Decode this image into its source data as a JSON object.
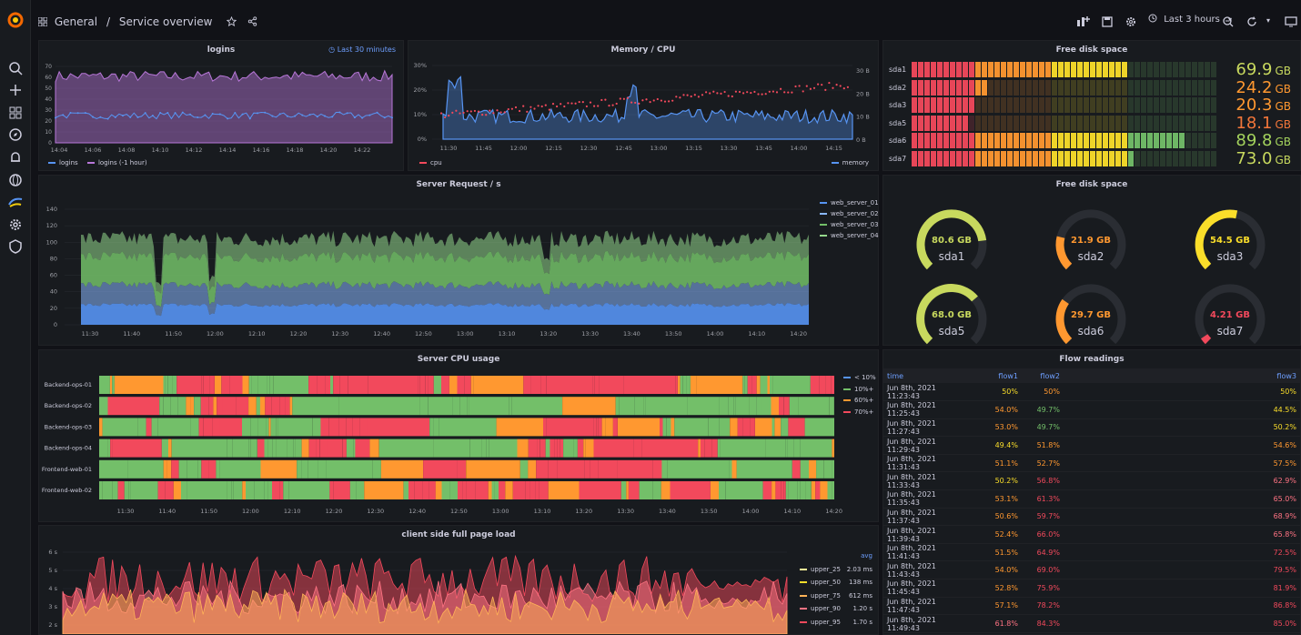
{
  "nav": {
    "breadcrumb_folder": "General",
    "breadcrumb_sep": "/",
    "dashboard_title": "Service overview",
    "time_range": "Last 3 hours"
  },
  "panels": {
    "logins": {
      "title": "logins",
      "relative_time": "Last 30 minutes",
      "y_ticks": [
        "70",
        "60",
        "50",
        "40",
        "30",
        "20",
        "10",
        "0"
      ],
      "x_ticks": [
        "14:04",
        "14:06",
        "14:08",
        "14:10",
        "14:12",
        "14:14",
        "14:16",
        "14:18",
        "14:20",
        "14:22"
      ],
      "legend": [
        "logins",
        "logins (-1 hour)"
      ]
    },
    "memory_cpu": {
      "title": "Memory / CPU",
      "y_left_ticks": [
        "30%",
        "20%",
        "10%",
        "0%"
      ],
      "y_right_ticks": [
        "30 B",
        "20 B",
        "10 B",
        "0 B"
      ],
      "x_ticks": [
        "11:30",
        "11:45",
        "12:00",
        "12:15",
        "12:30",
        "12:45",
        "13:00",
        "13:15",
        "13:30",
        "13:45",
        "14:00",
        "14:15"
      ],
      "legend": [
        "cpu",
        "memory"
      ]
    },
    "disk_bars": {
      "title": "Free disk space",
      "rows": [
        {
          "name": "sda1",
          "value": "69.9",
          "unit": "GB",
          "fill": 0.699,
          "color": "#c8d95e"
        },
        {
          "name": "sda2",
          "value": "24.2",
          "unit": "GB",
          "fill": 0.242,
          "color": "#ff9830"
        },
        {
          "name": "sda3",
          "value": "20.3",
          "unit": "GB",
          "fill": 0.203,
          "color": "#ff9830"
        },
        {
          "name": "sda5",
          "value": "18.1",
          "unit": "GB",
          "fill": 0.181,
          "color": "#f2763a"
        },
        {
          "name": "sda6",
          "value": "89.8",
          "unit": "GB",
          "fill": 0.898,
          "color": "#a4d35d"
        },
        {
          "name": "sda7",
          "value": "73.0",
          "unit": "GB",
          "fill": 0.73,
          "color": "#c8d95e"
        }
      ]
    },
    "server_requests": {
      "title": "Server Request / s",
      "y_ticks": [
        "140",
        "120",
        "100",
        "80",
        "60",
        "40",
        "20",
        "0"
      ],
      "x_ticks": [
        "11:30",
        "11:40",
        "11:50",
        "12:00",
        "12:10",
        "12:20",
        "12:30",
        "12:40",
        "12:50",
        "13:00",
        "13:10",
        "13:20",
        "13:30",
        "13:40",
        "13:50",
        "14:00",
        "14:10",
        "14:20"
      ],
      "legend": [
        "web_server_01",
        "web_server_02",
        "web_server_03",
        "web_server_04"
      ]
    },
    "gauges": {
      "title": "Free disk space",
      "items": [
        {
          "name": "sda1",
          "value": "80.6 GB",
          "level": 0.806,
          "color": "#c8d95e"
        },
        {
          "name": "sda2",
          "value": "21.9 GB",
          "level": 0.219,
          "color": "#ff9830"
        },
        {
          "name": "sda3",
          "value": "54.5 GB",
          "level": 0.545,
          "color": "#fade2a"
        },
        {
          "name": "sda5",
          "value": "68.0 GB",
          "level": 0.68,
          "color": "#c8d95e"
        },
        {
          "name": "sda6",
          "value": "29.7 GB",
          "level": 0.297,
          "color": "#ff9830"
        },
        {
          "name": "sda7",
          "value": "4.21 GB",
          "level": 0.042,
          "color": "#f2495c"
        }
      ]
    },
    "cpu_usage": {
      "title": "Server CPU usage",
      "rows": [
        "Backend-ops-01",
        "Backend-ops-02",
        "Backend-ops-03",
        "Backend-ops-04",
        "Frontend-web-01",
        "Frontend-web-02"
      ],
      "x_ticks": [
        "11:30",
        "11:40",
        "11:50",
        "12:00",
        "12:10",
        "12:20",
        "12:30",
        "12:40",
        "12:50",
        "13:00",
        "13:10",
        "13:20",
        "13:30",
        "13:40",
        "13:50",
        "14:00",
        "14:10",
        "14:20"
      ],
      "legend": [
        "< 10%",
        "10%+",
        "60%+",
        "70%+"
      ]
    },
    "page_load": {
      "title": "client side full page load",
      "y_ticks": [
        "6 s",
        "5 s",
        "4 s",
        "3 s",
        "2 s"
      ],
      "legend_header": "avg",
      "legend": [
        {
          "name": "upper_25",
          "avg": "2.03 ms"
        },
        {
          "name": "upper_50",
          "avg": "138 ms"
        },
        {
          "name": "upper_75",
          "avg": "612 ms"
        },
        {
          "name": "upper_90",
          "avg": "1.20 s"
        },
        {
          "name": "upper_95",
          "avg": "1.70 s"
        }
      ]
    },
    "flow": {
      "title": "Flow readings",
      "columns": [
        "time",
        "flow1",
        "flow2",
        "flow3"
      ],
      "rows": [
        [
          "Jun 8th, 2021 11:23:43",
          "50%",
          "50%",
          "50%"
        ],
        [
          "Jun 8th, 2021 11:25:43",
          "54.0%",
          "49.7%",
          "44.5%"
        ],
        [
          "Jun 8th, 2021 11:27:43",
          "53.0%",
          "49.7%",
          "50.2%"
        ],
        [
          "Jun 8th, 2021 11:29:43",
          "49.4%",
          "51.8%",
          "54.6%"
        ],
        [
          "Jun 8th, 2021 11:31:43",
          "51.1%",
          "52.7%",
          "57.5%"
        ],
        [
          "Jun 8th, 2021 11:33:43",
          "50.2%",
          "56.8%",
          "62.9%"
        ],
        [
          "Jun 8th, 2021 11:35:43",
          "53.1%",
          "61.3%",
          "65.0%"
        ],
        [
          "Jun 8th, 2021 11:37:43",
          "50.6%",
          "59.7%",
          "68.9%"
        ],
        [
          "Jun 8th, 2021 11:39:43",
          "52.4%",
          "66.0%",
          "65.8%"
        ],
        [
          "Jun 8th, 2021 11:41:43",
          "51.5%",
          "64.9%",
          "72.5%"
        ],
        [
          "Jun 8th, 2021 11:43:43",
          "54.0%",
          "69.0%",
          "79.5%"
        ],
        [
          "Jun 8th, 2021 11:45:43",
          "52.8%",
          "75.9%",
          "81.9%"
        ],
        [
          "Jun 8th, 2021 11:47:43",
          "57.1%",
          "78.2%",
          "86.8%"
        ],
        [
          "Jun 8th, 2021 11:49:43",
          "61.8%",
          "84.3%",
          "85.0%"
        ]
      ]
    }
  },
  "colors": {
    "green": "#73bf69",
    "yellow": "#fade2a",
    "orange": "#ff9830",
    "red": "#f2495c",
    "blue": "#5794f2",
    "purple": "#b877d9"
  }
}
